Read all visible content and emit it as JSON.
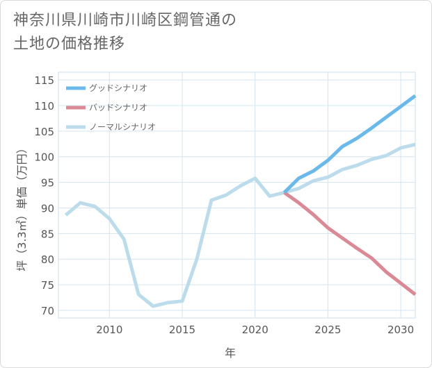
{
  "title": {
    "line1": "神奈川県川崎市川崎区鋼管通の",
    "line2": "土地の価格推移"
  },
  "chart_data": {
    "type": "line",
    "xlabel": "年",
    "ylabel": "坪（3.3㎡）単価（万円）",
    "xlim": [
      2006.5,
      2031
    ],
    "ylim": [
      68.5,
      116.5
    ],
    "xticks": [
      2010,
      2015,
      2020,
      2025,
      2030
    ],
    "yticks": [
      70,
      75,
      80,
      85,
      90,
      95,
      100,
      105,
      110,
      115
    ],
    "grid": true,
    "legend_position": "top-left",
    "series": [
      {
        "name": "グッドシナリオ",
        "color": "#6bb8ea",
        "x": [
          2022,
          2023,
          2024,
          2025,
          2026,
          2027,
          2028,
          2029,
          2030,
          2031
        ],
        "values": [
          93.0,
          95.8,
          97.2,
          99.3,
          102.0,
          103.6,
          105.6,
          107.7,
          109.8,
          111.9
        ]
      },
      {
        "name": "バッドシナリオ",
        "color": "#da8a95",
        "x": [
          2022,
          2023,
          2024,
          2025,
          2026,
          2027,
          2028,
          2029,
          2030,
          2031
        ],
        "values": [
          93.0,
          91.0,
          88.7,
          86.1,
          84.1,
          82.1,
          80.2,
          77.5,
          75.3,
          73.1
        ]
      },
      {
        "name": "ノーマルシナリオ",
        "color": "#bcdceb",
        "x": [
          2007,
          2008,
          2009,
          2010,
          2011,
          2012,
          2013,
          2014,
          2015,
          2016,
          2017,
          2018,
          2019,
          2020,
          2021,
          2022,
          2023,
          2024,
          2025,
          2026,
          2027,
          2028,
          2029,
          2030,
          2031
        ],
        "values": [
          88.6,
          91.0,
          90.3,
          87.9,
          83.9,
          73.1,
          70.8,
          71.5,
          71.8,
          80.0,
          91.5,
          92.5,
          94.3,
          95.8,
          92.3,
          93.0,
          93.8,
          95.3,
          96.0,
          97.5,
          98.3,
          99.5,
          100.2,
          101.7,
          102.4
        ]
      }
    ]
  }
}
